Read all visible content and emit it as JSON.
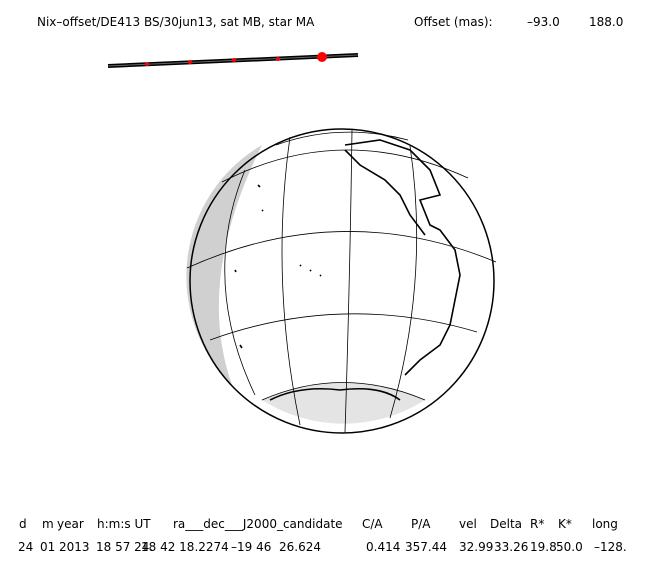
{
  "header": {
    "title": "Nix–offset/DE413 BS/30jun13, sat MB, star MA",
    "offset_label": "Offset (mas):",
    "offset_values": [
      "–93.0",
      "188.0"
    ]
  },
  "table": {
    "columns": [
      "d",
      "m",
      "year",
      "h:m:s UT",
      "ra___dec___J2000_candidate",
      "C/A",
      "P/A",
      "vel",
      "Delta",
      "R*",
      "K*",
      "long"
    ],
    "rows": [
      [
        "24",
        "01",
        "2013",
        "18 57 24.",
        "18 42 18.2274",
        "–19 46  26.624",
        "0.414",
        "357.44",
        "32.99",
        "33.26",
        "19.8",
        "50.0",
        "–128."
      ]
    ]
  }
}
